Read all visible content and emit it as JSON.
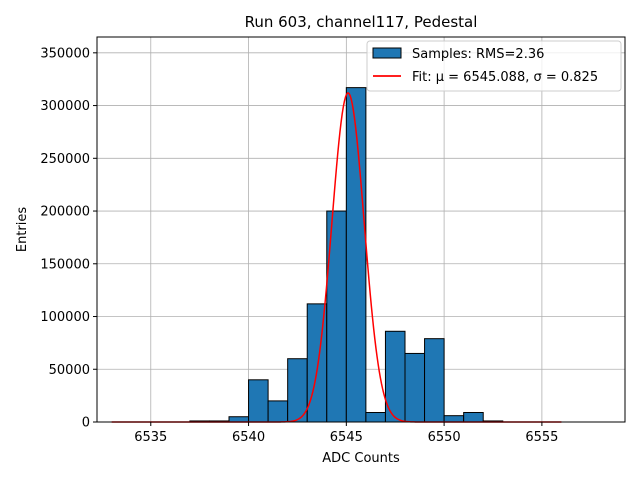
{
  "chart_data": {
    "type": "bar",
    "title": "Run 603, channel117, Pedestal",
    "xlabel": "ADC Counts",
    "ylabel": "Entries",
    "xlim": [
      6532.25,
      6559.25
    ],
    "ylim": [
      0,
      365000
    ],
    "grid": true,
    "legend_position": "top-right",
    "x_ticks": [
      6535,
      6540,
      6545,
      6550,
      6555
    ],
    "y_ticks": [
      0,
      50000,
      100000,
      150000,
      200000,
      250000,
      300000,
      350000
    ],
    "histogram": {
      "name": "Samples: RMS=2.36",
      "color": "#1f77b4",
      "bins": [
        {
          "x0": 6537,
          "x1": 6538,
          "value": 1000
        },
        {
          "x0": 6538,
          "x1": 6539,
          "value": 1000
        },
        {
          "x0": 6539,
          "x1": 6540,
          "value": 5000
        },
        {
          "x0": 6540,
          "x1": 6541,
          "value": 40000
        },
        {
          "x0": 6541,
          "x1": 6542,
          "value": 20000
        },
        {
          "x0": 6542,
          "x1": 6543,
          "value": 60000
        },
        {
          "x0": 6543,
          "x1": 6544,
          "value": 112000
        },
        {
          "x0": 6544,
          "x1": 6545,
          "value": 200000
        },
        {
          "x0": 6545,
          "x1": 6546,
          "value": 317000
        },
        {
          "x0": 6546,
          "x1": 6547,
          "value": 9000
        },
        {
          "x0": 6547,
          "x1": 6548,
          "value": 86000
        },
        {
          "x0": 6548,
          "x1": 6549,
          "value": 65000
        },
        {
          "x0": 6549,
          "x1": 6550,
          "value": 79000
        },
        {
          "x0": 6550,
          "x1": 6551,
          "value": 6000
        },
        {
          "x0": 6551,
          "x1": 6552,
          "value": 9000
        },
        {
          "x0": 6552,
          "x1": 6553,
          "value": 1000
        }
      ]
    },
    "fit": {
      "name": "Fit: μ = 6545.088, σ = 0.825",
      "color": "#ff0000",
      "mu": 6545.088,
      "sigma": 0.825,
      "amplitude": 312000,
      "x_range": [
        6533,
        6556
      ]
    }
  }
}
